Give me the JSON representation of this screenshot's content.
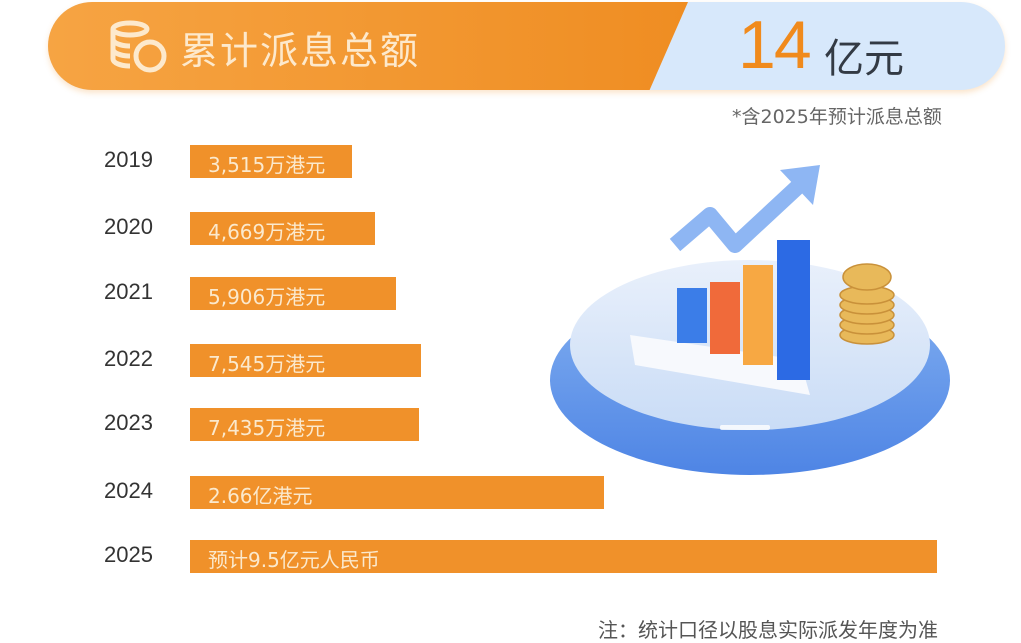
{
  "header": {
    "title": "累计派息总额",
    "total_value": "14",
    "total_unit": "亿元",
    "note": "*含2025年预计派息总额",
    "icon": "coins-icon"
  },
  "footer": {
    "note": "注：统计口径以股息实际派发年度为准"
  },
  "colors": {
    "bar": "#f0912a",
    "banner_orange": "#f29527",
    "banner_blue": "#d7e8fb",
    "accent_number": "#f08a1c"
  },
  "chart_data": {
    "type": "bar",
    "orientation": "horizontal",
    "categories": [
      "2019",
      "2020",
      "2021",
      "2022",
      "2023",
      "2024",
      "2025"
    ],
    "values": [
      3515,
      4669,
      5906,
      7545,
      7435,
      26600,
      95000
    ],
    "unit": "万",
    "labels": [
      "3,515万港元",
      "4,669万港元",
      "5,906万港元",
      "7,545万港元",
      "7,435万港元",
      "2.66亿港元",
      "预计9.5亿元人民币"
    ],
    "grid": false
  },
  "illustration": {
    "icon": "rising-bar-chart-on-platform-illustration"
  }
}
